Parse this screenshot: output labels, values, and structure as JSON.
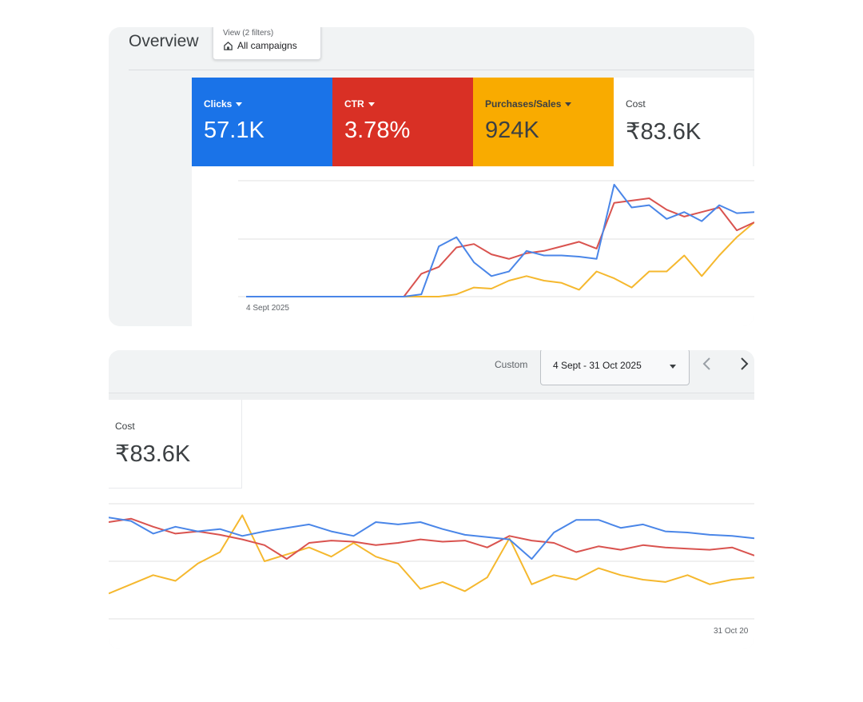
{
  "header": {
    "title": "Overview",
    "view_small": "View (2 filters)",
    "view_main": "All campaigns"
  },
  "metrics": [
    {
      "label": "Clicks",
      "value": "57.1K",
      "color": "#1a73e8"
    },
    {
      "label": "CTR",
      "value": "3.78%",
      "color": "#d93025"
    },
    {
      "label": "Purchases/Sales",
      "value": "924K",
      "color": "#f9ab00"
    },
    {
      "label": "Cost",
      "value": "₹83.6K",
      "color": "#ffffff"
    }
  ],
  "date_controls": {
    "preset": "Custom",
    "range": "4 Sept - 31 Oct 2025",
    "prev_icon": "chevron-left-icon",
    "next_icon": "chevron-right-icon"
  },
  "cost_card": {
    "label": "Cost",
    "value": "₹83.6K"
  },
  "colors": {
    "clicks": "#4a86e8",
    "ctr": "#d9534f",
    "purchases": "#f5b82e",
    "grid": "#e0e0e0"
  },
  "chart_data": [
    {
      "type": "line",
      "x_start_label": "4 Sept 2025",
      "series": [
        {
          "key": "clicks",
          "values": [
            0,
            0,
            0,
            0,
            0,
            0,
            0,
            0,
            0,
            0,
            0.02,
            0.44,
            0.52,
            0.3,
            0.18,
            0.22,
            0.4,
            0.36,
            0.36,
            0.35,
            0.33,
            0.98,
            0.78,
            0.8,
            0.68,
            0.74,
            0.66,
            0.8,
            0.73,
            0.74
          ]
        },
        {
          "key": "ctr",
          "values": [
            0,
            0,
            0,
            0,
            0,
            0,
            0,
            0,
            0,
            0,
            0.2,
            0.26,
            0.43,
            0.46,
            0.37,
            0.33,
            0.38,
            0.4,
            0.44,
            0.48,
            0.42,
            0.82,
            0.84,
            0.86,
            0.76,
            0.7,
            0.74,
            0.78,
            0.58,
            0.65
          ]
        },
        {
          "key": "purchases",
          "values": [
            0,
            0,
            0,
            0,
            0,
            0,
            0,
            0,
            0,
            0,
            0,
            0,
            0.02,
            0.08,
            0.07,
            0.14,
            0.18,
            0.14,
            0.12,
            0.06,
            0.22,
            0.16,
            0.08,
            0.22,
            0.22,
            0.36,
            0.18,
            0.36,
            0.52,
            0.65
          ]
        }
      ]
    },
    {
      "type": "line",
      "x_end_label": "31 Oct 20",
      "series": [
        {
          "key": "clicks",
          "values": [
            0.88,
            0.85,
            0.74,
            0.8,
            0.76,
            0.78,
            0.72,
            0.76,
            0.79,
            0.82,
            0.76,
            0.72,
            0.84,
            0.82,
            0.84,
            0.78,
            0.73,
            0.71,
            0.69,
            0.52,
            0.75,
            0.86,
            0.86,
            0.79,
            0.82,
            0.76,
            0.75,
            0.73,
            0.72,
            0.7
          ]
        },
        {
          "key": "ctr",
          "values": [
            0.84,
            0.87,
            0.8,
            0.74,
            0.76,
            0.73,
            0.69,
            0.64,
            0.52,
            0.66,
            0.68,
            0.67,
            0.64,
            0.66,
            0.69,
            0.67,
            0.68,
            0.62,
            0.72,
            0.68,
            0.66,
            0.58,
            0.63,
            0.6,
            0.64,
            0.62,
            0.61,
            0.6,
            0.62,
            0.55
          ]
        },
        {
          "key": "purchases",
          "values": [
            0.22,
            0.3,
            0.38,
            0.33,
            0.48,
            0.58,
            0.9,
            0.5,
            0.56,
            0.62,
            0.54,
            0.66,
            0.54,
            0.48,
            0.26,
            0.32,
            0.24,
            0.36,
            0.7,
            0.3,
            0.38,
            0.34,
            0.44,
            0.38,
            0.34,
            0.32,
            0.38,
            0.3,
            0.34,
            0.36
          ]
        }
      ]
    }
  ]
}
